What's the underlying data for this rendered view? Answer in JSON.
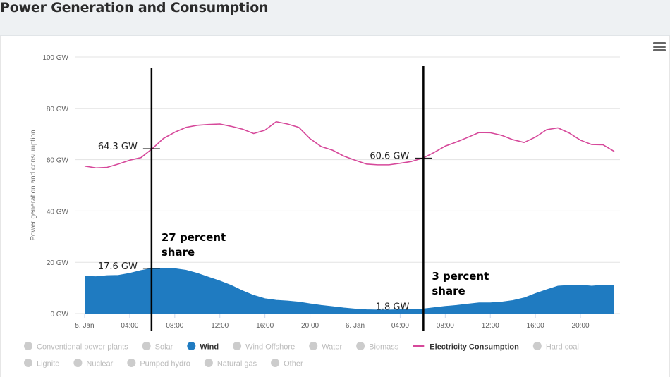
{
  "page": {
    "title": "Power Generation and Consumption"
  },
  "ui": {
    "menu_icon": "hamburger-menu-icon"
  },
  "chart_data": {
    "type": "area",
    "ylabel": "Power generation and consumption",
    "ylim": [
      0,
      100
    ],
    "y_ticks": [
      "0 GW",
      "20 GW",
      "40 GW",
      "60 GW",
      "80 GW",
      "100 GW"
    ],
    "x_ticks": [
      "5. Jan",
      "04:00",
      "08:00",
      "12:00",
      "16:00",
      "20:00",
      "6. Jan",
      "04:00",
      "08:00",
      "12:00",
      "16:00",
      "20:00"
    ],
    "xlim_hours": [
      0,
      47
    ],
    "grid": true,
    "legend_position": "bottom",
    "series": [
      {
        "name": "Electricity Consumption",
        "type": "line",
        "color": "#d6489a",
        "x": [
          0,
          1,
          2,
          3,
          4,
          5,
          6,
          7,
          8,
          9,
          10,
          11,
          12,
          13,
          14,
          15,
          16,
          17,
          18,
          19,
          20,
          21,
          22,
          23,
          24,
          25,
          26,
          27,
          28,
          29,
          30,
          31,
          32,
          33,
          34,
          35,
          36,
          37,
          38,
          39,
          40,
          41,
          42,
          43,
          44,
          45,
          46,
          47
        ],
        "values": [
          57.5,
          56.8,
          57.0,
          58.3,
          59.8,
          60.8,
          64.3,
          68.3,
          70.7,
          72.6,
          73.4,
          73.7,
          73.9,
          73.0,
          71.9,
          70.2,
          71.5,
          74.8,
          73.9,
          72.6,
          68.2,
          65.1,
          63.7,
          61.4,
          59.8,
          58.3,
          58.0,
          58.0,
          58.6,
          59.3,
          60.6,
          62.8,
          65.3,
          66.9,
          68.7,
          70.6,
          70.5,
          69.5,
          67.8,
          66.7,
          68.8,
          71.7,
          72.4,
          70.4,
          67.6,
          65.9,
          65.8,
          63.2
        ]
      },
      {
        "name": "Wind",
        "type": "area",
        "color": "#1f7bc1",
        "x": [
          0,
          1,
          2,
          3,
          4,
          5,
          6,
          7,
          8,
          9,
          10,
          11,
          12,
          13,
          14,
          15,
          16,
          17,
          18,
          19,
          20,
          21,
          22,
          23,
          24,
          25,
          26,
          27,
          28,
          29,
          30,
          31,
          32,
          33,
          34,
          35,
          36,
          37,
          38,
          39,
          40,
          41,
          42,
          43,
          44,
          45,
          46,
          47
        ],
        "values": [
          14.5,
          14.4,
          14.8,
          14.9,
          15.7,
          16.8,
          17.6,
          17.7,
          17.5,
          16.9,
          15.7,
          14.2,
          12.7,
          11.0,
          8.9,
          7.1,
          5.8,
          5.2,
          4.9,
          4.5,
          3.8,
          3.2,
          2.7,
          2.2,
          1.8,
          1.5,
          1.4,
          1.4,
          1.5,
          1.6,
          1.8,
          2.3,
          2.8,
          3.2,
          3.7,
          4.2,
          4.2,
          4.5,
          5.1,
          6.1,
          7.8,
          9.3,
          10.7,
          11.0,
          11.1,
          10.7,
          11.1,
          11.0
        ]
      }
    ],
    "annotations": [
      {
        "x_hour": 6,
        "label_value": "64.3 GW",
        "value": 64.3,
        "series": "Electricity Consumption"
      },
      {
        "x_hour": 6,
        "label_value": "17.6 GW",
        "value": 17.6,
        "series": "Wind"
      },
      {
        "x_hour": 30,
        "label_value": "60.6 GW",
        "value": 60.6,
        "series": "Electricity Consumption"
      },
      {
        "x_hour": 30,
        "label_value": "1.8 GW",
        "value": 1.8,
        "series": "Wind"
      }
    ],
    "share_labels": [
      {
        "x_hour": 6,
        "lines": [
          "27 percent",
          "share"
        ]
      },
      {
        "x_hour": 30,
        "lines": [
          "3 percent",
          "share"
        ]
      }
    ],
    "legend": [
      {
        "label": "Conventional power plants",
        "active": false,
        "symbol": "dot",
        "color": "#cccccc"
      },
      {
        "label": "Solar",
        "active": false,
        "symbol": "dot",
        "color": "#cccccc"
      },
      {
        "label": "Wind",
        "active": true,
        "symbol": "dot",
        "color": "#1f7bc1"
      },
      {
        "label": "Wind Offshore",
        "active": false,
        "symbol": "dot",
        "color": "#cccccc"
      },
      {
        "label": "Water",
        "active": false,
        "symbol": "dot",
        "color": "#cccccc"
      },
      {
        "label": "Biomass",
        "active": false,
        "symbol": "dot",
        "color": "#cccccc"
      },
      {
        "label": "Electricity Consumption",
        "active": true,
        "symbol": "line",
        "color": "#d6489a"
      },
      {
        "label": "Hard coal",
        "active": false,
        "symbol": "dot",
        "color": "#cccccc"
      },
      {
        "label": "Lignite",
        "active": false,
        "symbol": "dot",
        "color": "#cccccc"
      },
      {
        "label": "Nuclear",
        "active": false,
        "symbol": "dot",
        "color": "#cccccc"
      },
      {
        "label": "Pumped hydro",
        "active": false,
        "symbol": "dot",
        "color": "#cccccc"
      },
      {
        "label": "Natural gas",
        "active": false,
        "symbol": "dot",
        "color": "#cccccc"
      },
      {
        "label": "Other",
        "active": false,
        "symbol": "dot",
        "color": "#cccccc"
      }
    ]
  }
}
